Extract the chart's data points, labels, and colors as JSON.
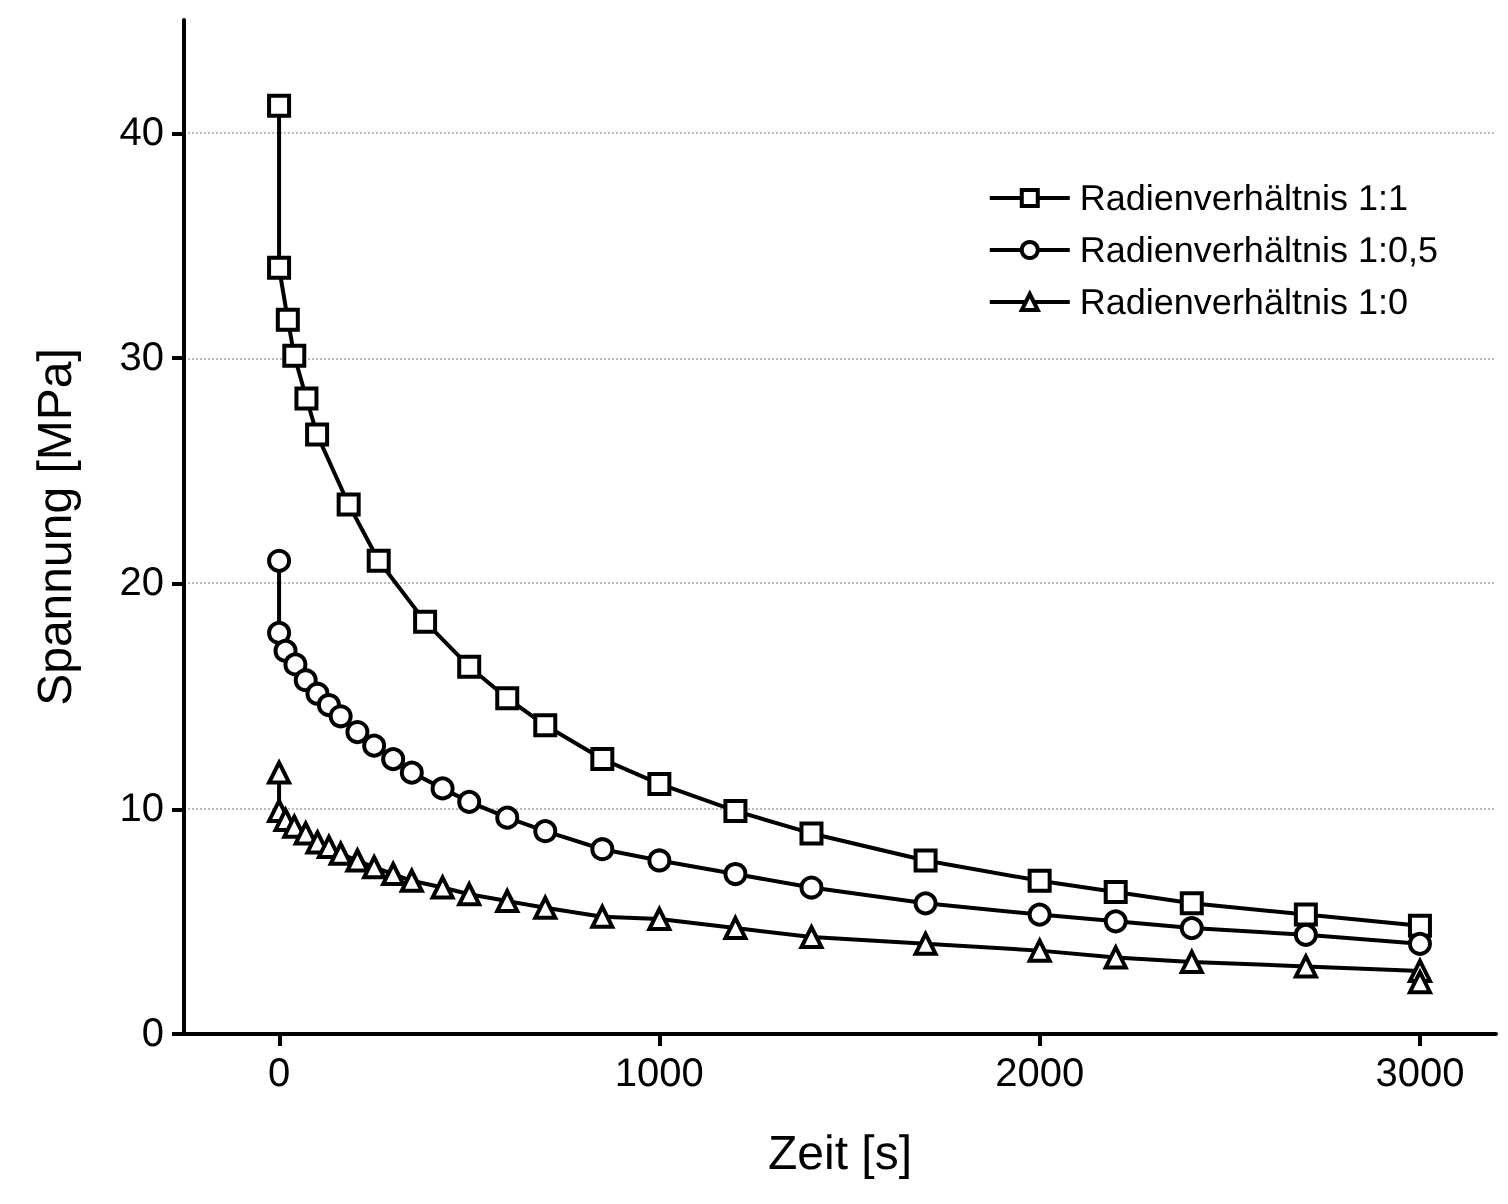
{
  "chart_data": {
    "type": "line",
    "xlabel": "Zeit [s]",
    "ylabel": "Spannung [MPa]",
    "xlim": [
      -250,
      3200
    ],
    "xticks": [
      0,
      1000,
      2000,
      3000
    ],
    "ylim": [
      0,
      45
    ],
    "yticks": [
      0,
      10,
      20,
      30,
      40
    ],
    "grid": "y",
    "legend": "top right",
    "line_style": "solid",
    "series": [
      {
        "name": "Radienverhältnis 1:1",
        "color": "#000000",
        "marker": "square",
        "x": [
          0,
          0,
          23,
          40,
          72,
          100,
          183,
          262,
          384,
          500,
          600,
          700,
          850,
          1000,
          1200,
          1400,
          1700,
          2000,
          2200,
          2400,
          2700,
          3000
        ],
        "values": [
          41.2,
          34.0,
          31.7,
          30.1,
          28.2,
          26.6,
          23.5,
          21.0,
          18.3,
          16.3,
          14.9,
          13.7,
          12.2,
          11.1,
          9.9,
          8.9,
          7.7,
          6.8,
          6.3,
          5.8,
          5.3,
          4.8
        ]
      },
      {
        "name": "Radienverhältnis 1:0,5",
        "color": "#000000",
        "marker": "circle",
        "x": [
          0,
          0,
          17,
          43,
          70,
          101,
          131,
          162,
          206,
          250,
          300,
          349,
          430,
          500,
          600,
          700,
          850,
          1000,
          1200,
          1400,
          1700,
          2000,
          2200,
          2400,
          2700,
          3000
        ],
        "values": [
          21.0,
          17.8,
          17.0,
          16.4,
          15.7,
          15.1,
          14.6,
          14.1,
          13.4,
          12.8,
          12.2,
          11.6,
          10.9,
          10.3,
          9.6,
          9.0,
          8.2,
          7.7,
          7.1,
          6.5,
          5.8,
          5.3,
          5.0,
          4.7,
          4.4,
          4.0
        ]
      },
      {
        "name": "Radienverhältnis 1:0",
        "color": "#000000",
        "marker": "triangle",
        "x": [
          0,
          0,
          17,
          40,
          70,
          101,
          131,
          162,
          206,
          250,
          300,
          349,
          430,
          500,
          600,
          700,
          850,
          1000,
          1200,
          1400,
          1700,
          2000,
          2200,
          2400,
          2700,
          3000,
          3000
        ],
        "values": [
          11.6,
          9.9,
          9.5,
          9.2,
          8.9,
          8.5,
          8.3,
          8.0,
          7.7,
          7.4,
          7.1,
          6.8,
          6.5,
          6.2,
          5.9,
          5.6,
          5.2,
          5.1,
          4.7,
          4.3,
          4.0,
          3.7,
          3.4,
          3.2,
          3.0,
          2.8,
          2.3
        ]
      }
    ]
  }
}
